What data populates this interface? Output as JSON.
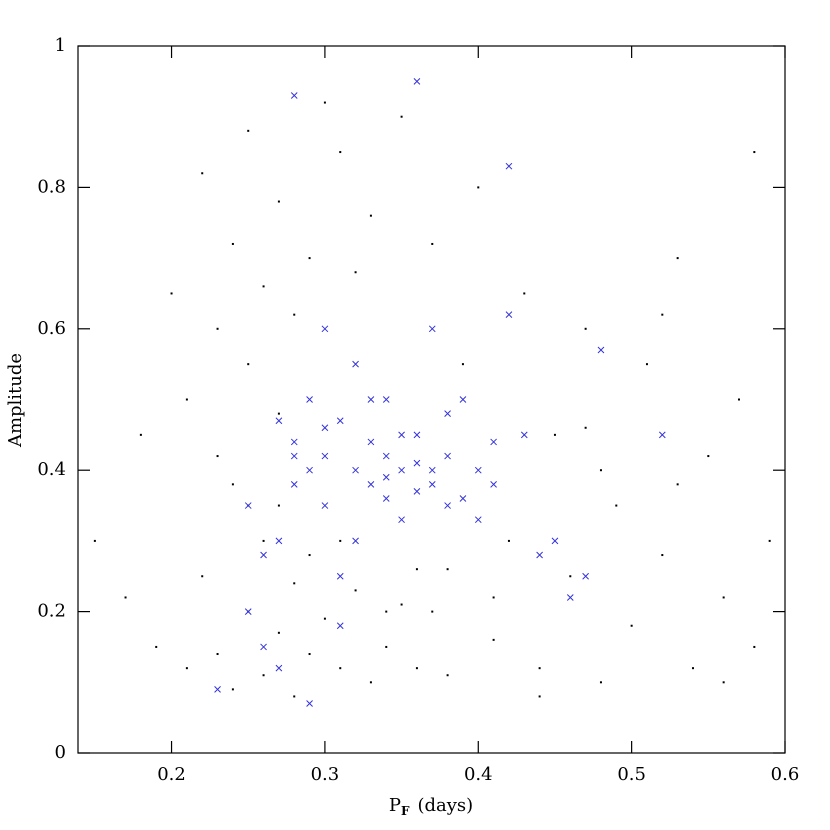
{
  "chart_data": {
    "type": "scatter",
    "xlabel": [
      "P",
      "F",
      "(days)"
    ],
    "ylabel": "Amplitude",
    "xlim": [
      0.139,
      0.6
    ],
    "ylim": [
      0,
      1
    ],
    "xticks": [
      0.2,
      0.3,
      0.4,
      0.5,
      0.6
    ],
    "yticks": [
      0,
      0.2,
      0.4,
      0.6,
      0.8,
      1
    ],
    "series": [
      {
        "color": "#000000",
        "marker": "dot",
        "x": [
          0.15,
          0.17,
          0.18,
          0.19,
          0.2,
          0.21,
          0.21,
          0.22,
          0.22,
          0.23,
          0.23,
          0.24,
          0.24,
          0.24,
          0.25,
          0.25,
          0.25,
          0.26,
          0.26,
          0.26,
          0.27,
          0.27,
          0.27,
          0.28,
          0.28,
          0.28,
          0.29,
          0.29,
          0.3,
          0.3,
          0.31,
          0.31,
          0.32,
          0.32,
          0.33,
          0.33,
          0.34,
          0.35,
          0.35,
          0.36,
          0.37,
          0.37,
          0.38,
          0.39,
          0.4,
          0.41,
          0.42,
          0.43,
          0.44,
          0.45,
          0.46,
          0.47,
          0.48,
          0.49,
          0.5,
          0.51,
          0.52,
          0.53,
          0.54,
          0.55,
          0.56,
          0.57,
          0.58,
          0.59,
          0.23,
          0.25,
          0.29,
          0.34,
          0.38,
          0.44,
          0.48,
          0.52,
          0.56,
          0.58,
          0.27,
          0.31,
          0.36,
          0.41,
          0.47,
          0.53
        ],
        "values": [
          0.3,
          0.22,
          0.45,
          0.15,
          0.65,
          0.5,
          0.12,
          0.82,
          0.25,
          0.6,
          0.14,
          0.72,
          0.38,
          0.09,
          0.55,
          0.2,
          0.88,
          0.66,
          0.3,
          0.11,
          0.48,
          0.17,
          0.78,
          0.62,
          0.24,
          0.08,
          0.7,
          0.14,
          0.92,
          0.19,
          0.85,
          0.12,
          0.68,
          0.23,
          0.76,
          0.1,
          0.15,
          0.9,
          0.21,
          0.12,
          0.72,
          0.2,
          0.11,
          0.55,
          0.8,
          0.16,
          0.3,
          0.65,
          0.12,
          0.45,
          0.25,
          0.6,
          0.1,
          0.35,
          0.18,
          0.55,
          0.28,
          0.7,
          0.12,
          0.42,
          0.22,
          0.5,
          0.15,
          0.3,
          0.42,
          0.35,
          0.28,
          0.2,
          0.26,
          0.08,
          0.4,
          0.62,
          0.1,
          0.85,
          0.35,
          0.3,
          0.26,
          0.22,
          0.46,
          0.38
        ]
      },
      {
        "color": "#3333dd",
        "marker": "cross",
        "x": [
          0.23,
          0.25,
          0.26,
          0.27,
          0.27,
          0.28,
          0.28,
          0.29,
          0.29,
          0.3,
          0.3,
          0.31,
          0.31,
          0.32,
          0.32,
          0.33,
          0.33,
          0.34,
          0.34,
          0.35,
          0.35,
          0.36,
          0.36,
          0.37,
          0.37,
          0.38,
          0.38,
          0.39,
          0.4,
          0.41,
          0.42,
          0.43,
          0.45,
          0.47,
          0.48,
          0.28,
          0.3,
          0.32,
          0.34,
          0.36,
          0.26,
          0.29,
          0.33,
          0.35,
          0.38,
          0.4,
          0.42,
          0.31,
          0.27,
          0.37,
          0.25,
          0.28,
          0.3,
          0.34,
          0.36,
          0.39,
          0.41,
          0.44,
          0.46,
          0.52
        ],
        "values": [
          0.09,
          0.2,
          0.15,
          0.47,
          0.3,
          0.93,
          0.44,
          0.5,
          0.07,
          0.42,
          0.35,
          0.47,
          0.25,
          0.4,
          0.55,
          0.38,
          0.44,
          0.36,
          0.5,
          0.4,
          0.33,
          0.95,
          0.45,
          0.38,
          0.6,
          0.42,
          0.35,
          0.5,
          0.4,
          0.38,
          0.83,
          0.45,
          0.3,
          0.25,
          0.57,
          0.38,
          0.6,
          0.3,
          0.42,
          0.37,
          0.28,
          0.4,
          0.5,
          0.45,
          0.48,
          0.33,
          0.62,
          0.18,
          0.12,
          0.4,
          0.35,
          0.42,
          0.46,
          0.39,
          0.41,
          0.36,
          0.44,
          0.28,
          0.22,
          0.45
        ]
      }
    ]
  }
}
